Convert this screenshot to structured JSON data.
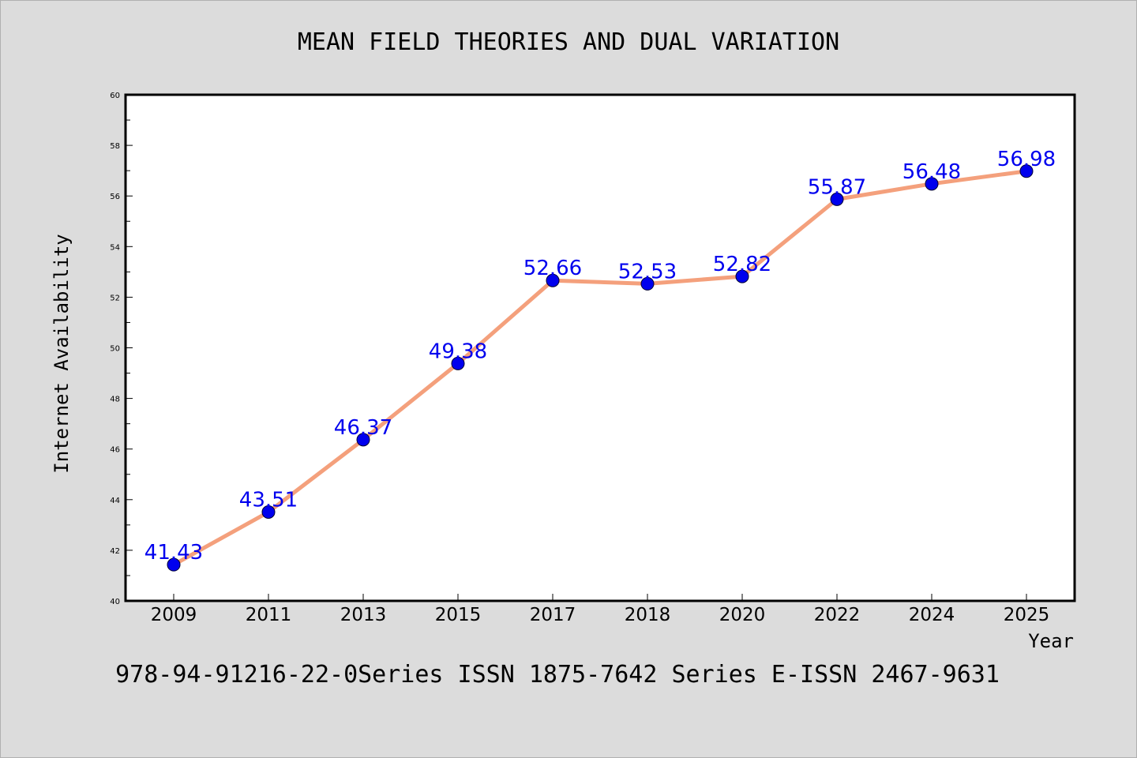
{
  "chart_data": {
    "type": "line",
    "title": "MEAN FIELD THEORIES AND DUAL VARIATION",
    "xlabel": "Year",
    "ylabel": "Internet Availability",
    "categories": [
      "2009",
      "2011",
      "2013",
      "2015",
      "2017",
      "2018",
      "2020",
      "2022",
      "2024",
      "2025"
    ],
    "series": [
      {
        "values": [
          41.43,
          43.51,
          46.37,
          49.38,
          52.66,
          52.53,
          52.82,
          55.87,
          56.48,
          56.98
        ],
        "data_labels": [
          "41.43",
          "43.51",
          "46.37",
          "49.38",
          "52.66",
          "52.53",
          "52.82",
          "55.87",
          "56.48",
          "56.98"
        ]
      }
    ],
    "ylim": [
      40,
      60
    ],
    "yticks": [
      "40",
      "42",
      "44",
      "46",
      "48",
      "50",
      "52",
      "54",
      "56",
      "58",
      "60"
    ],
    "grid": false,
    "legend": "none",
    "footer": "978-94-91216-22-0Series ISSN 1875-7642 Series E-ISSN 2467-9631",
    "colors": {
      "line": "#f4a07c",
      "marker": "#0000ee",
      "label": "#0000ee",
      "background": "#dcdcdc",
      "plot_background": "#ffffff"
    }
  }
}
